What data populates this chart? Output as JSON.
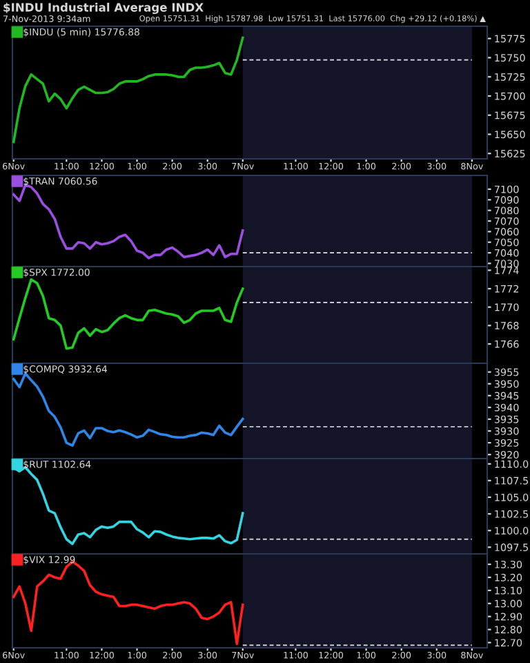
{
  "chart_data": [
    {
      "type": "line",
      "title": "$INDU Industrial Average INDX",
      "subtitle": "7-Nov-2013 9:34am",
      "annotations": [
        "Open 15751.31  High 15787.98  Low 15751.31  Last 15776.00  Chg +29.12 (+0.18%) ▲"
      ],
      "categories": [
        "6Nov",
        null,
        null,
        null,
        null,
        null,
        null,
        null,
        null,
        "11:00",
        null,
        null,
        null,
        null,
        null,
        "12:00",
        null,
        null,
        null,
        null,
        null,
        "1:00",
        null,
        null,
        null,
        null,
        null,
        "2:00",
        null,
        null,
        null,
        null,
        null,
        "3:00",
        null,
        null,
        null,
        null,
        null,
        "7Nov",
        null,
        null,
        null,
        null,
        null,
        null,
        null,
        null,
        "11:00",
        null,
        null,
        null,
        null,
        null,
        "12:00",
        null,
        null,
        null,
        null,
        null,
        "1:00",
        null,
        null,
        null,
        null,
        null,
        "2:00",
        null,
        null,
        null,
        null,
        null,
        "3:00",
        null,
        null,
        null,
        null,
        null,
        "8Nov"
      ],
      "series": [
        {
          "name": "$INDU (5 min) 15776.88",
          "color": "#22b822",
          "values": [
            15640,
            15684,
            15713,
            15728,
            15722,
            15716,
            15693,
            15703,
            15696,
            15684,
            15697,
            15708,
            15712,
            15708,
            15704,
            15704,
            15705,
            15709,
            15716,
            15719,
            15719,
            15719,
            15722,
            15726,
            15728,
            15728,
            15728,
            15727,
            15725,
            15725,
            15734,
            15737,
            15737,
            15738,
            15740,
            15743,
            15730,
            15728,
            15747,
            15776,
            null,
            null,
            null,
            null,
            null,
            null,
            null,
            null,
            null,
            null,
            null,
            null,
            null,
            null,
            null,
            null,
            null,
            null,
            null,
            null,
            null,
            null,
            null,
            null,
            null,
            null,
            null,
            null,
            null,
            null,
            null,
            null,
            null,
            null,
            null,
            null,
            null,
            null,
            null
          ]
        }
      ],
      "ylim": [
        15618,
        15791
      ],
      "yticks": [
        15625,
        15650,
        15675,
        15700,
        15725,
        15750,
        15775
      ],
      "bands": [
        {
          "axis": "x",
          "from": "7Nov",
          "to": "8Nov",
          "color": "#15152a"
        }
      ],
      "ref_lines": [
        {
          "axis": "y",
          "value": 15747,
          "color": "#cccccc",
          "line_style": "dashed"
        }
      ],
      "legend": "top left"
    },
    {
      "type": "line",
      "categories": [
        "6Nov",
        null,
        null,
        null,
        null,
        null,
        null,
        null,
        null,
        "11:00",
        null,
        null,
        null,
        null,
        null,
        "12:00",
        null,
        null,
        null,
        null,
        null,
        "1:00",
        null,
        null,
        null,
        null,
        null,
        "2:00",
        null,
        null,
        null,
        null,
        null,
        "3:00",
        null,
        null,
        null,
        null,
        null,
        "7Nov",
        null,
        null,
        null,
        null,
        null,
        null,
        null,
        null,
        "11:00",
        null,
        null,
        null,
        null,
        null,
        "12:00",
        null,
        null,
        null,
        null,
        null,
        "1:00",
        null,
        null,
        null,
        null,
        null,
        "2:00",
        null,
        null,
        null,
        null,
        null,
        "3:00",
        null,
        null,
        null,
        null,
        null,
        "8Nov"
      ],
      "series": [
        {
          "name": "$TRAN 7060.56",
          "color": "#9b4fe0",
          "values": [
            7095,
            7089,
            7104,
            7102,
            7096,
            7086,
            7081,
            7072,
            7055,
            7044,
            7044,
            7050,
            7049,
            7044,
            7050,
            7048,
            7049,
            7051,
            7055,
            7057,
            7051,
            7042,
            7040,
            7035,
            7038,
            7038,
            7043,
            7045,
            7041,
            7036,
            7037,
            7038,
            7040,
            7043,
            7038,
            7047,
            7036,
            7039,
            7039,
            7061,
            null,
            null,
            null,
            null,
            null,
            null,
            null,
            null,
            null,
            null,
            null,
            null,
            null,
            null,
            null,
            null,
            null,
            null,
            null,
            null,
            null,
            null,
            null,
            null,
            null,
            null,
            null,
            null,
            null,
            null,
            null,
            null,
            null,
            null,
            null,
            null,
            null,
            null,
            null
          ]
        }
      ],
      "ylim": [
        7027,
        7113
      ],
      "yticks": [
        7030,
        7040,
        7050,
        7060,
        7070,
        7080,
        7090,
        7100
      ],
      "tick_labels": "y",
      "bands": [
        {
          "axis": "x",
          "from": "7Nov",
          "to": "8Nov",
          "color": "#15152a"
        }
      ],
      "ref_lines": [
        {
          "axis": "y",
          "value": 7040,
          "color": "#cccccc",
          "line_style": "dashed"
        }
      ],
      "legend": "top left"
    },
    {
      "type": "line",
      "categories": [
        "6Nov",
        null,
        null,
        null,
        null,
        null,
        null,
        null,
        null,
        "11:00",
        null,
        null,
        null,
        null,
        null,
        "12:00",
        null,
        null,
        null,
        null,
        null,
        "1:00",
        null,
        null,
        null,
        null,
        null,
        "2:00",
        null,
        null,
        null,
        null,
        null,
        "3:00",
        null,
        null,
        null,
        null,
        null,
        "7Nov",
        null,
        null,
        null,
        null,
        null,
        null,
        null,
        null,
        "11:00",
        null,
        null,
        null,
        null,
        null,
        "12:00",
        null,
        null,
        null,
        null,
        null,
        "1:00",
        null,
        null,
        null,
        null,
        null,
        "2:00",
        null,
        null,
        null,
        null,
        null,
        "3:00",
        null,
        null,
        null,
        null,
        null,
        "8Nov"
      ],
      "series": [
        {
          "name": "$SPX 1772.00",
          "color": "#22cc22",
          "values": [
            1766.5,
            1768.8,
            1771.0,
            1773.0,
            1772.6,
            1771.2,
            1768.8,
            1768.6,
            1768.0,
            1765.5,
            1765.6,
            1767.2,
            1767.7,
            1766.9,
            1767.6,
            1767.3,
            1767.5,
            1768.2,
            1768.8,
            1769.1,
            1768.8,
            1768.6,
            1768.6,
            1769.6,
            1769.7,
            1769.5,
            1769.3,
            1769.2,
            1769.0,
            1768.3,
            1768.6,
            1769.3,
            1769.6,
            1769.6,
            1769.6,
            1769.9,
            1768.6,
            1768.4,
            1770.5,
            1772.0,
            null,
            null,
            null,
            null,
            null,
            null,
            null,
            null,
            null,
            null,
            null,
            null,
            null,
            null,
            null,
            null,
            null,
            null,
            null,
            null,
            null,
            null,
            null,
            null,
            null,
            null,
            null,
            null,
            null,
            null,
            null,
            null,
            null,
            null,
            null,
            null,
            null,
            null,
            null
          ]
        }
      ],
      "ylim": [
        1763.9,
        1774.4
      ],
      "yticks": [
        1766,
        1768,
        1770,
        1772,
        1774
      ],
      "tick_labels": "y",
      "bands": [
        {
          "axis": "x",
          "from": "7Nov",
          "to": "8Nov",
          "color": "#15152a"
        }
      ],
      "ref_lines": [
        {
          "axis": "y",
          "value": 1770.5,
          "color": "#cccccc",
          "line_style": "dashed"
        }
      ],
      "legend": "top left"
    },
    {
      "type": "line",
      "categories": [
        "6Nov",
        null,
        null,
        null,
        null,
        null,
        null,
        null,
        null,
        "11:00",
        null,
        null,
        null,
        null,
        null,
        "12:00",
        null,
        null,
        null,
        null,
        null,
        "1:00",
        null,
        null,
        null,
        null,
        null,
        "2:00",
        null,
        null,
        null,
        null,
        null,
        "3:00",
        null,
        null,
        null,
        null,
        null,
        "7Nov",
        null,
        null,
        null,
        null,
        null,
        null,
        null,
        null,
        "11:00",
        null,
        null,
        null,
        null,
        null,
        "12:00",
        null,
        null,
        null,
        null,
        null,
        "1:00",
        null,
        null,
        null,
        null,
        null,
        "2:00",
        null,
        null,
        null,
        null,
        null,
        "3:00",
        null,
        null,
        null,
        null,
        null,
        "8Nov"
      ],
      "series": [
        {
          "name": "$COMPQ 3932.64",
          "color": "#2e86e8",
          "values": [
            3952.0,
            3948.6,
            3954.4,
            3951.5,
            3948.8,
            3944.5,
            3938.5,
            3936.0,
            3931.5,
            3925.0,
            3923.8,
            3929.0,
            3930.2,
            3927.0,
            3931.2,
            3931.2,
            3930.0,
            3929.5,
            3930.2,
            3929.5,
            3928.5,
            3927.3,
            3928.0,
            3930.5,
            3929.6,
            3928.6,
            3928.3,
            3927.5,
            3927.3,
            3927.3,
            3928.0,
            3928.3,
            3929.3,
            3929.0,
            3928.3,
            3932.2,
            3929.3,
            3928.3,
            3931.8,
            3935.1,
            null,
            null,
            null,
            null,
            null,
            null,
            null,
            null,
            null,
            null,
            null,
            null,
            null,
            null,
            null,
            null,
            null,
            null,
            null,
            null,
            null,
            null,
            null,
            null,
            null,
            null,
            null,
            null,
            null,
            null,
            null,
            null,
            null,
            null,
            null,
            null,
            null,
            null,
            null
          ]
        }
      ],
      "ylim": [
        3918.3,
        3958.7
      ],
      "yticks": [
        3920,
        3925,
        3930,
        3935,
        3940,
        3945,
        3950,
        3955
      ],
      "tick_labels": "y",
      "bands": [
        {
          "axis": "x",
          "from": "7Nov",
          "to": "8Nov",
          "color": "#15152a"
        }
      ],
      "ref_lines": [
        {
          "axis": "y",
          "value": 3931.8,
          "color": "#cccccc",
          "line_style": "dashed"
        }
      ],
      "legend": "top left"
    },
    {
      "type": "line",
      "categories": [
        "6Nov",
        null,
        null,
        null,
        null,
        null,
        null,
        null,
        null,
        "11:00",
        null,
        null,
        null,
        null,
        null,
        "12:00",
        null,
        null,
        null,
        null,
        null,
        "1:00",
        null,
        null,
        null,
        null,
        null,
        "2:00",
        null,
        null,
        null,
        null,
        null,
        "3:00",
        null,
        null,
        null,
        null,
        null,
        "7Nov",
        null,
        null,
        null,
        null,
        null,
        null,
        null,
        null,
        "11:00",
        null,
        null,
        null,
        null,
        null,
        "12:00",
        null,
        null,
        null,
        null,
        null,
        "1:00",
        null,
        null,
        null,
        null,
        null,
        "2:00",
        null,
        null,
        null,
        null,
        null,
        "3:00",
        null,
        null,
        null,
        null,
        null,
        "8Nov"
      ],
      "series": [
        {
          "name": "$RUT 1102.64",
          "color": "#33d6e0",
          "values": [
            1109.4,
            1108.9,
            1109.5,
            1108.5,
            1107.6,
            1105.5,
            1103.0,
            1102.6,
            1100.5,
            1098.7,
            1098.0,
            1099.4,
            1099.6,
            1099.0,
            1100.1,
            1100.6,
            1100.4,
            1100.6,
            1101.3,
            1101.3,
            1101.3,
            1100.2,
            1099.7,
            1099.0,
            1099.9,
            1099.8,
            1099.4,
            1099.1,
            1098.9,
            1098.8,
            1098.7,
            1098.8,
            1098.9,
            1098.9,
            1098.8,
            1099.3,
            1098.4,
            1098.1,
            1098.6,
            1102.6,
            null,
            null,
            null,
            null,
            null,
            null,
            null,
            null,
            null,
            null,
            null,
            null,
            null,
            null,
            null,
            null,
            null,
            null,
            null,
            null,
            null,
            null,
            null,
            null,
            null,
            null,
            null,
            null,
            null,
            null,
            null,
            null,
            null,
            null,
            null,
            null,
            null,
            null,
            null
          ]
        }
      ],
      "ylim": [
        1096.5,
        1110.8
      ],
      "yticks": [
        {
          "value": 1097.5,
          "label": "1097.5"
        },
        {
          "value": 1100,
          "label": "1100.0"
        },
        {
          "value": 1102.5,
          "label": "1102.5"
        },
        {
          "value": 1105,
          "label": "1105.0"
        },
        {
          "value": 1107.5,
          "label": "1107.5"
        },
        {
          "value": 1110,
          "label": "1110.0"
        }
      ],
      "tick_labels": "y",
      "bands": [
        {
          "axis": "x",
          "from": "7Nov",
          "to": "8Nov",
          "color": "#15152a"
        }
      ],
      "ref_lines": [
        {
          "axis": "y",
          "value": 1098.7,
          "color": "#cccccc",
          "line_style": "dashed"
        }
      ],
      "legend": "top left"
    },
    {
      "type": "line",
      "categories": [
        "6Nov",
        null,
        null,
        null,
        null,
        null,
        null,
        null,
        null,
        "11:00",
        null,
        null,
        null,
        null,
        null,
        "12:00",
        null,
        null,
        null,
        null,
        null,
        "1:00",
        null,
        null,
        null,
        null,
        null,
        "2:00",
        null,
        null,
        null,
        null,
        null,
        "3:00",
        null,
        null,
        null,
        null,
        null,
        "7Nov",
        null,
        null,
        null,
        null,
        null,
        null,
        null,
        null,
        "11:00",
        null,
        null,
        null,
        null,
        null,
        "12:00",
        null,
        null,
        null,
        null,
        null,
        "1:00",
        null,
        null,
        null,
        null,
        null,
        "2:00",
        null,
        null,
        null,
        null,
        null,
        "3:00",
        null,
        null,
        null,
        null,
        null,
        "8Nov"
      ],
      "series": [
        {
          "name": "$VIX 12.99",
          "color": "#ff2020",
          "values": [
            13.05,
            13.13,
            13.0,
            12.79,
            13.13,
            13.17,
            13.22,
            13.2,
            13.19,
            13.28,
            13.32,
            13.29,
            13.25,
            13.14,
            13.09,
            13.07,
            13.06,
            13.05,
            12.98,
            12.98,
            12.99,
            12.99,
            12.98,
            12.97,
            12.96,
            12.98,
            12.99,
            12.99,
            13.0,
            13.01,
            13.0,
            12.96,
            12.89,
            12.88,
            12.9,
            12.93,
            12.99,
            13.01,
            12.69,
            12.99,
            null,
            null,
            null,
            null,
            null,
            null,
            null,
            null,
            null,
            null,
            null,
            null,
            null,
            null,
            null,
            null,
            null,
            null,
            null,
            null,
            null,
            null,
            null,
            null,
            null,
            null,
            null,
            null,
            null,
            null,
            null,
            null,
            null,
            null,
            null,
            null,
            null,
            null,
            null
          ]
        }
      ],
      "ylim": [
        12.66,
        13.38
      ],
      "yticks": [
        {
          "value": 12.7,
          "label": "12.70"
        },
        {
          "value": 12.8,
          "label": "12.80"
        },
        {
          "value": 12.9,
          "label": "12.90"
        },
        {
          "value": 13.0,
          "label": "13.00"
        },
        {
          "value": 13.1,
          "label": "13.10"
        },
        {
          "value": 13.2,
          "label": "13.20"
        },
        {
          "value": 13.3,
          "label": "13.30"
        }
      ],
      "bands": [
        {
          "axis": "x",
          "from": "7Nov",
          "to": "8Nov",
          "color": "#15152a"
        }
      ],
      "ref_lines": [
        {
          "axis": "y",
          "value": 12.68,
          "color": "#cccccc",
          "line_style": "dashed"
        }
      ],
      "legend": "top left"
    }
  ]
}
